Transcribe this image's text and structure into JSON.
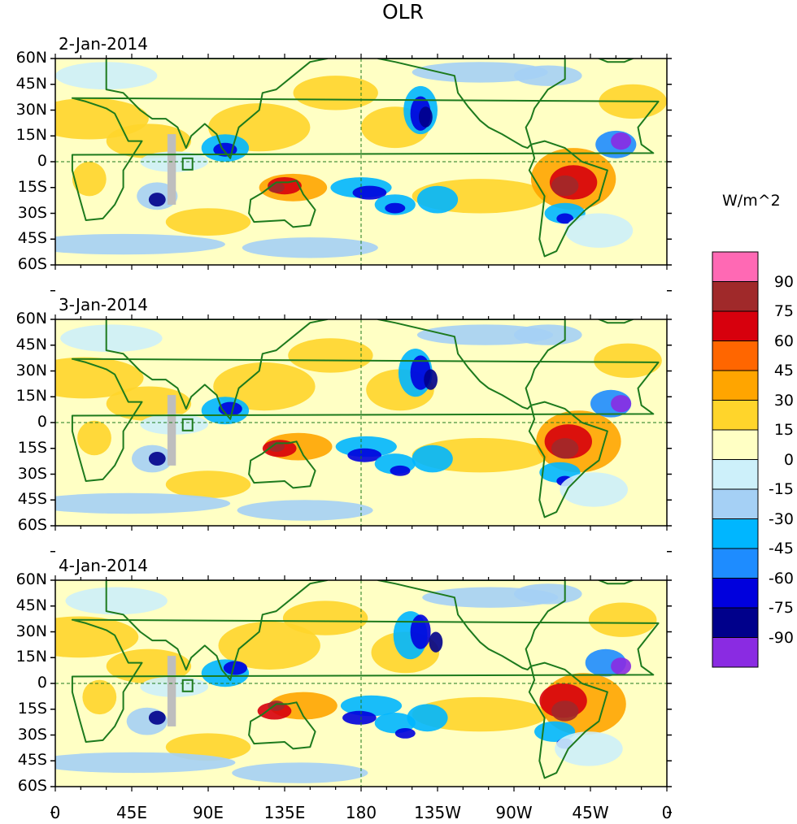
{
  "title": "OLR",
  "units": "W/m^2",
  "panels": [
    {
      "date": "2-Jan-2014"
    },
    {
      "date": "3-Jan-2014"
    },
    {
      "date": "4-Jan-2014"
    }
  ],
  "lat_labels": [
    "60N",
    "45N",
    "30N",
    "15N",
    "0",
    "15S",
    "30S",
    "45S",
    "60S"
  ],
  "lon_labels": [
    "0",
    "45E",
    "90E",
    "135E",
    "180",
    "135W",
    "90W",
    "45W",
    "0"
  ],
  "colorbar": {
    "labels": [
      "90",
      "75",
      "60",
      "45",
      "30",
      "15",
      "0",
      "-15",
      "-30",
      "-45",
      "-60",
      "-75",
      "-90"
    ],
    "colors": [
      "#ff69b4",
      "#a0292a",
      "#d7000d",
      "#ff6600",
      "#ffa500",
      "#ffd52b",
      "#ffffc4",
      "#cdf0fa",
      "#a5d0f5",
      "#00b6ff",
      "#1e8cff",
      "#0000dd",
      "#00008b",
      "#8a2be2"
    ]
  },
  "colors": {
    "coast": "#1d7a1d",
    "missing": "#bebebe",
    "background": "#ffffff"
  }
}
